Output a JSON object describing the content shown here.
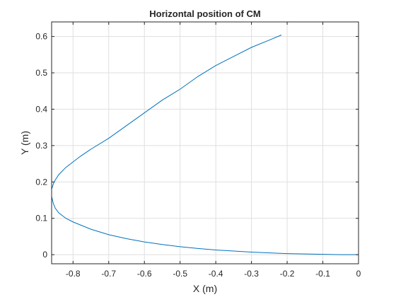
{
  "chart_data": {
    "type": "line",
    "title": "Horizontal position of CM",
    "xlabel": "X (m)",
    "ylabel": "Y (m)",
    "xlim": [
      -0.86,
      0
    ],
    "ylim": [
      -0.025,
      0.64
    ],
    "xticks": [
      -0.8,
      -0.7,
      -0.6,
      -0.5,
      -0.4,
      -0.3,
      -0.2,
      -0.1,
      0
    ],
    "xtick_labels": [
      "-0.8",
      "-0.7",
      "-0.6",
      "-0.5",
      "-0.4",
      "-0.3",
      "-0.2",
      "-0.1",
      "0"
    ],
    "yticks": [
      0,
      0.1,
      0.2,
      0.3,
      0.4,
      0.5,
      0.6
    ],
    "ytick_labels": [
      "0",
      "0.1",
      "0.2",
      "0.3",
      "0.4",
      "0.5",
      "0.6"
    ],
    "grid": true,
    "box": true,
    "line_color": "#0072BD",
    "series": [
      {
        "x": [
          0,
          -0.05,
          -0.1,
          -0.15,
          -0.2,
          -0.25,
          -0.3,
          -0.35,
          -0.4,
          -0.45,
          -0.5,
          -0.55,
          -0.6,
          -0.65,
          -0.7,
          -0.75,
          -0.8,
          -0.82,
          -0.84,
          -0.85,
          -0.855,
          -0.86,
          -0.86,
          -0.855,
          -0.85,
          -0.84,
          -0.82,
          -0.8,
          -0.78,
          -0.75,
          -0.7,
          -0.65,
          -0.6,
          -0.55,
          -0.5,
          -0.45,
          -0.4,
          -0.35,
          -0.3,
          -0.25,
          -0.216
        ],
        "y": [
          0.0,
          0.0,
          0.001,
          0.002,
          0.003,
          0.005,
          0.007,
          0.01,
          0.013,
          0.017,
          0.022,
          0.028,
          0.035,
          0.044,
          0.055,
          0.07,
          0.09,
          0.1,
          0.115,
          0.128,
          0.14,
          0.16,
          0.18,
          0.195,
          0.205,
          0.22,
          0.24,
          0.255,
          0.27,
          0.29,
          0.32,
          0.355,
          0.39,
          0.425,
          0.455,
          0.49,
          0.52,
          0.545,
          0.57,
          0.59,
          0.604
        ]
      }
    ]
  }
}
